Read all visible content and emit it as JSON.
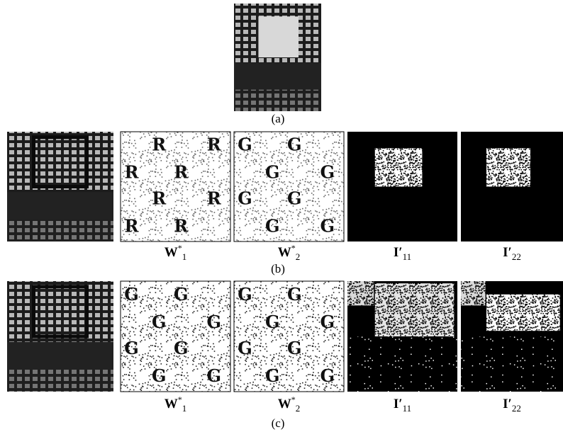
{
  "figure": {
    "a": {
      "caption": "(a)"
    },
    "b": {
      "caption": "(b)",
      "labels": [
        {
          "symbol": "W",
          "sup": "*",
          "sub": "1"
        },
        {
          "symbol": "W",
          "sup": "*",
          "sub": "2"
        },
        {
          "symbol": "I′",
          "sub": "11"
        },
        {
          "symbol": "I′",
          "sub": "22"
        }
      ],
      "watermarks": [
        [
          "R",
          "R",
          "R",
          "R",
          "R",
          "R",
          "R",
          "R"
        ],
        [
          "G",
          "G",
          "G",
          "G",
          "G",
          "G",
          "G",
          "G"
        ]
      ]
    },
    "c": {
      "caption": "(c)",
      "labels": [
        {
          "symbol": "W",
          "sup": "*",
          "sub": "1"
        },
        {
          "symbol": "W",
          "sup": "*",
          "sub": "2"
        },
        {
          "symbol": "I′",
          "sub": "11"
        },
        {
          "symbol": "I′",
          "sub": "22"
        }
      ],
      "watermarks": [
        [
          "G",
          "G",
          "G",
          "G",
          "G",
          "G",
          "G",
          "G"
        ],
        [
          "G",
          "G",
          "G",
          "G",
          "G",
          "G",
          "G",
          "G"
        ]
      ]
    }
  }
}
